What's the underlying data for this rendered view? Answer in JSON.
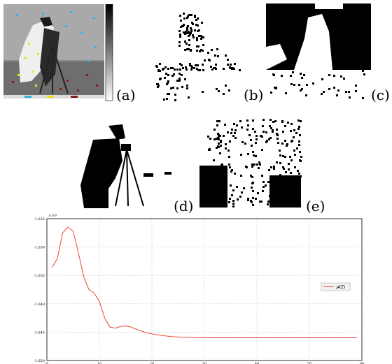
{
  "panels": {
    "a": "(a)",
    "b": "(b)",
    "c": "(c)",
    "d": "(d)",
    "e": "(e)"
  },
  "chart_data": {
    "type": "line",
    "title": "",
    "xlabel": "",
    "ylabel": "",
    "y_exponent": "×10²",
    "xlim": [
      0,
      60
    ],
    "ylim": [
      -1.65,
      -1.625
    ],
    "x_ticks": [
      0,
      10,
      20,
      30,
      40,
      50,
      60
    ],
    "y_ticks": [
      -1.625,
      -1.63,
      -1.635,
      -1.64,
      -1.645,
      -1.65
    ],
    "y_tick_labels": [
      "-1.625",
      "-1.630",
      "-1.635",
      "-1.640",
      "-1.645",
      "-1.650"
    ],
    "grid": true,
    "legend_position": "right",
    "series": [
      {
        "name": "𝓕(Z)",
        "color": "#e8321e",
        "x": [
          1,
          2,
          3,
          4,
          5,
          6,
          7,
          8,
          9,
          10,
          11,
          12,
          13,
          14,
          15,
          16,
          17,
          18,
          19,
          20,
          22,
          24,
          26,
          28,
          30,
          35,
          40,
          45,
          50,
          55,
          59
        ],
        "y": [
          -1.6336,
          -1.632,
          -1.6275,
          -1.6265,
          -1.6272,
          -1.631,
          -1.6352,
          -1.6375,
          -1.6381,
          -1.6396,
          -1.6425,
          -1.6441,
          -1.6443,
          -1.644,
          -1.6439,
          -1.6441,
          -1.6445,
          -1.6448,
          -1.6451,
          -1.6453,
          -1.6456,
          -1.6458,
          -1.6459,
          -1.64595,
          -1.646,
          -1.646,
          -1.646,
          -1.646,
          -1.646,
          -1.646,
          -1.646
        ]
      }
    ]
  },
  "colors": {
    "line": "#e8321e",
    "grid": "#bbbbbb",
    "dots": [
      "#29b6e6",
      "#f2de16",
      "#8a1a1a"
    ]
  }
}
